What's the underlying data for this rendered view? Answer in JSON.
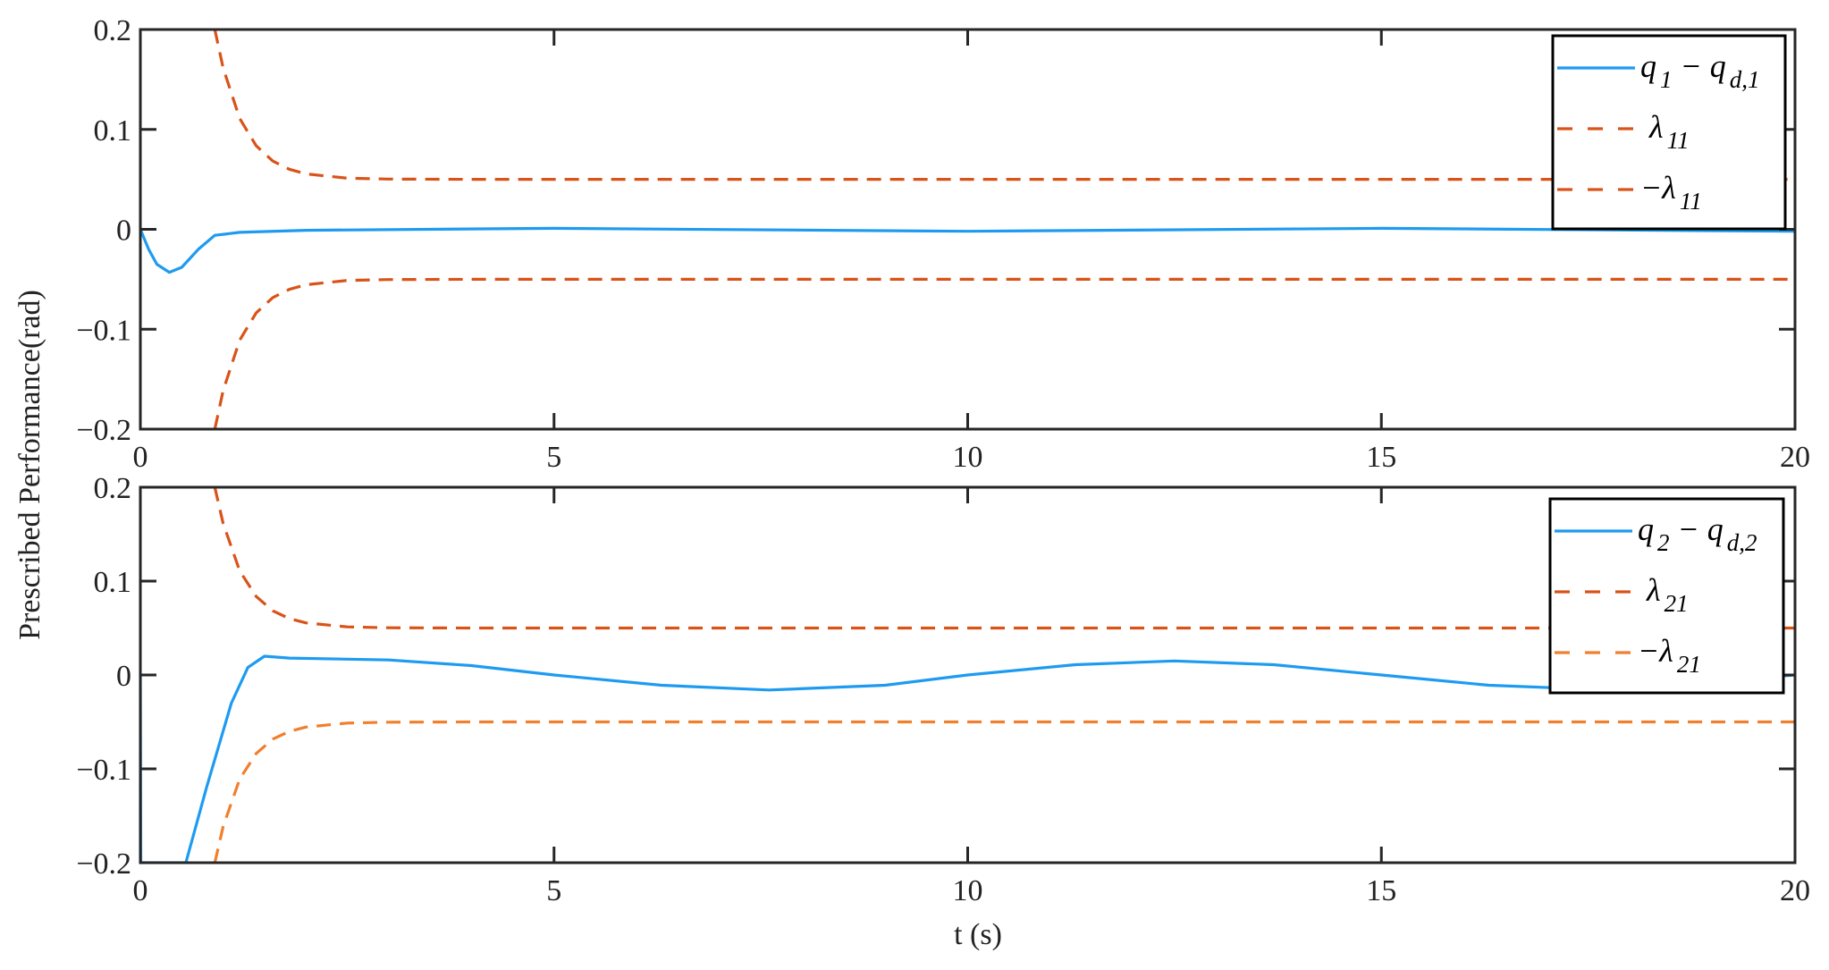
{
  "chart_data": [
    {
      "type": "line",
      "ylabel": "Prescribed Performance(rad)",
      "xlabel": "",
      "xlim": [
        0,
        20
      ],
      "ylim": [
        -0.2,
        0.2
      ],
      "xticks": [
        0,
        5,
        10,
        15,
        20
      ],
      "yticks": [
        0.2,
        0.1,
        0,
        -0.1,
        -0.2
      ],
      "ytick_labels": [
        "0.2",
        "0.1",
        "0",
        "−0.1",
        "−0.2"
      ],
      "grid": false,
      "legend_placement": "top-right",
      "series": [
        {
          "name": "q1 − qd,1",
          "legend": [
            {
              "t": "q"
            },
            {
              "sub": "1"
            },
            {
              "t": " − q"
            },
            {
              "sub": "d,1"
            }
          ],
          "style": "solid",
          "color": "#1E9BF0",
          "x": [
            0,
            0.1,
            0.2,
            0.35,
            0.5,
            0.7,
            0.9,
            1.2,
            2,
            5,
            10,
            15,
            20
          ],
          "y": [
            0,
            -0.02,
            -0.035,
            -0.043,
            -0.038,
            -0.02,
            -0.006,
            -0.003,
            -0.001,
            0.001,
            -0.002,
            0.001,
            -0.002
          ]
        },
        {
          "name": "λ11",
          "legend": [
            {
              "t": "λ"
            },
            {
              "sub": "11"
            }
          ],
          "style": "dashed",
          "color": "#D95319",
          "x": [
            0.9,
            1.0,
            1.2,
            1.4,
            1.6,
            1.8,
            2.0,
            2.5,
            3,
            4,
            20
          ],
          "y": [
            0.2,
            0.1615,
            0.111,
            0.0836,
            0.0684,
            0.0601,
            0.0555,
            0.0512,
            0.0503,
            0.05,
            0.05
          ]
        },
        {
          "name": "−λ11",
          "legend": [
            {
              "t": "−λ"
            },
            {
              "sub": "11"
            }
          ],
          "style": "dashed",
          "color": "#D95319",
          "x": [
            0.9,
            1.0,
            1.2,
            1.4,
            1.6,
            1.8,
            2.0,
            2.5,
            3,
            4,
            20
          ],
          "y": [
            -0.2,
            -0.1615,
            -0.111,
            -0.0836,
            -0.0684,
            -0.0601,
            -0.0555,
            -0.0512,
            -0.0503,
            -0.05,
            -0.05
          ]
        }
      ]
    },
    {
      "type": "line",
      "xlabel": "t (s)",
      "ylabel": "",
      "xlim": [
        0,
        20
      ],
      "ylim": [
        -0.2,
        0.2
      ],
      "xticks": [
        0,
        5,
        10,
        15,
        20
      ],
      "yticks": [
        0.2,
        0.1,
        0,
        -0.1,
        -0.2
      ],
      "ytick_labels": [
        "0.2",
        "0.1",
        "0",
        "−0.1",
        "−0.2"
      ],
      "grid": false,
      "legend_placement": "top-right",
      "series": [
        {
          "name": "q2 − qd,2",
          "legend": [
            {
              "t": "q"
            },
            {
              "sub": "2"
            },
            {
              "t": " − q"
            },
            {
              "sub": "d,2"
            }
          ],
          "style": "solid",
          "color": "#1E9BF0",
          "x": [
            0,
            0.005,
            0.55,
            0.8,
            1.1,
            1.3,
            1.5,
            1.8,
            3,
            4,
            5,
            6.3,
            7.6,
            9,
            10,
            11.3,
            12.5,
            13.7,
            15,
            16.3,
            17.5,
            18.8,
            20
          ],
          "y": [
            0,
            -0.2,
            -0.2,
            -0.12,
            -0.03,
            0.008,
            0.02,
            0.018,
            0.016,
            0.01,
            0,
            -0.011,
            -0.016,
            -0.011,
            0,
            0.011,
            0.015,
            0.011,
            0,
            -0.011,
            -0.015,
            -0.008,
            0
          ]
        },
        {
          "name": "λ21",
          "legend": [
            {
              "t": "λ"
            },
            {
              "sub": "21"
            }
          ],
          "style": "dashed",
          "color": "#D95319",
          "x": [
            0.9,
            1.0,
            1.2,
            1.4,
            1.6,
            1.8,
            2.0,
            2.5,
            3,
            4,
            20
          ],
          "y": [
            0.2,
            0.1615,
            0.111,
            0.0836,
            0.0684,
            0.0601,
            0.0555,
            0.0512,
            0.0503,
            0.05,
            0.05
          ]
        },
        {
          "name": "−λ21",
          "legend": [
            {
              "t": "−λ"
            },
            {
              "sub": "21"
            }
          ],
          "style": "dashed",
          "color": "#F07F2E",
          "x": [
            0.9,
            1.0,
            1.2,
            1.4,
            1.6,
            1.8,
            2.0,
            2.5,
            3,
            4,
            20
          ],
          "y": [
            -0.2,
            -0.1615,
            -0.111,
            -0.0836,
            -0.0684,
            -0.0601,
            -0.0555,
            -0.0512,
            -0.0503,
            -0.05,
            -0.05
          ]
        }
      ]
    }
  ]
}
